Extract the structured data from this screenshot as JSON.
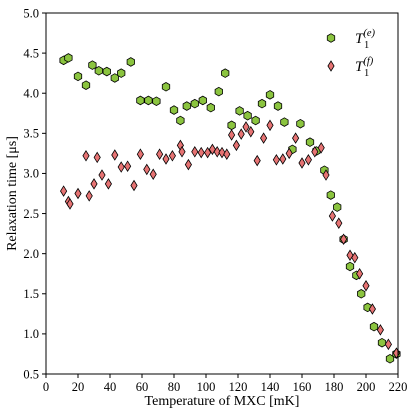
{
  "chart_data": {
    "type": "scatter",
    "xlabel": "Temperature of MXC [mK]",
    "ylabel": "Relaxation time [μs]",
    "xlim": [
      0,
      220
    ],
    "ylim": [
      0.5,
      5.0
    ],
    "xticks": [
      0,
      20,
      40,
      60,
      80,
      100,
      120,
      140,
      160,
      180,
      200,
      220
    ],
    "yticks": [
      0.5,
      1.0,
      1.5,
      2.0,
      2.5,
      3.0,
      3.5,
      4.0,
      4.5,
      5.0
    ],
    "xtick_labels": [
      "0",
      "20",
      "40",
      "60",
      "80",
      "100",
      "120",
      "140",
      "160",
      "180",
      "200",
      "220"
    ],
    "ytick_labels": [
      "0.5",
      "1.0",
      "1.5",
      "2.0",
      "2.5",
      "3.0",
      "3.5",
      "4.0",
      "4.5",
      "5.0"
    ],
    "grid": false,
    "legend_position": "top-right",
    "series": [
      {
        "legend_main": "T",
        "legend_sub": "1",
        "legend_sup": "(e)",
        "marker": "hexagon",
        "color": "#8bc43f",
        "x": [
          11,
          14,
          20,
          25,
          29,
          33,
          38,
          43,
          47,
          53,
          59,
          64,
          69,
          75,
          80,
          84,
          88,
          93,
          98,
          103,
          108,
          112,
          116,
          121,
          126,
          131,
          135,
          140,
          145,
          149,
          154,
          159,
          165,
          169,
          174,
          178,
          182,
          186,
          190,
          194,
          197,
          201,
          205,
          210,
          215,
          219
        ],
        "y": [
          4.41,
          4.44,
          4.21,
          4.1,
          4.35,
          4.28,
          4.27,
          4.19,
          4.25,
          4.39,
          3.91,
          3.91,
          3.9,
          4.08,
          3.79,
          3.66,
          3.84,
          3.87,
          3.91,
          3.82,
          4.02,
          4.25,
          3.6,
          3.78,
          3.72,
          3.66,
          3.87,
          3.98,
          3.84,
          3.64,
          3.3,
          3.62,
          3.39,
          3.28,
          3.04,
          2.73,
          2.58,
          2.18,
          1.84,
          1.73,
          1.5,
          1.33,
          1.09,
          0.89,
          0.69,
          0.75
        ]
      },
      {
        "legend_main": "T",
        "legend_sub": "1",
        "legend_sup": "(f)",
        "marker": "diamond",
        "color": "#e67373",
        "x": [
          11,
          14,
          15,
          20,
          25,
          27,
          30,
          32,
          35,
          39,
          43,
          47,
          51,
          55,
          59,
          63,
          67,
          71,
          75,
          79,
          84,
          85,
          89,
          93,
          97,
          101,
          104,
          107,
          110,
          113,
          116,
          119,
          122,
          125,
          128,
          132,
          136,
          140,
          144,
          148,
          152,
          156,
          160,
          164,
          168,
          172,
          175,
          179,
          183,
          186,
          190,
          193,
          196,
          200,
          204,
          209,
          214,
          219
        ],
        "y": [
          2.78,
          2.65,
          2.62,
          2.75,
          3.22,
          2.72,
          2.87,
          3.2,
          2.98,
          2.87,
          3.23,
          3.08,
          3.09,
          2.85,
          3.24,
          3.05,
          2.99,
          3.24,
          3.18,
          3.22,
          3.35,
          3.27,
          3.11,
          3.27,
          3.26,
          3.26,
          3.3,
          3.27,
          3.26,
          3.24,
          3.48,
          3.35,
          3.49,
          3.58,
          3.52,
          3.16,
          3.44,
          3.6,
          3.17,
          3.18,
          3.25,
          3.44,
          3.13,
          3.17,
          3.27,
          3.32,
          2.98,
          2.47,
          2.38,
          2.18,
          1.98,
          1.95,
          1.75,
          1.6,
          1.31,
          1.05,
          0.87,
          0.76
        ]
      }
    ]
  }
}
